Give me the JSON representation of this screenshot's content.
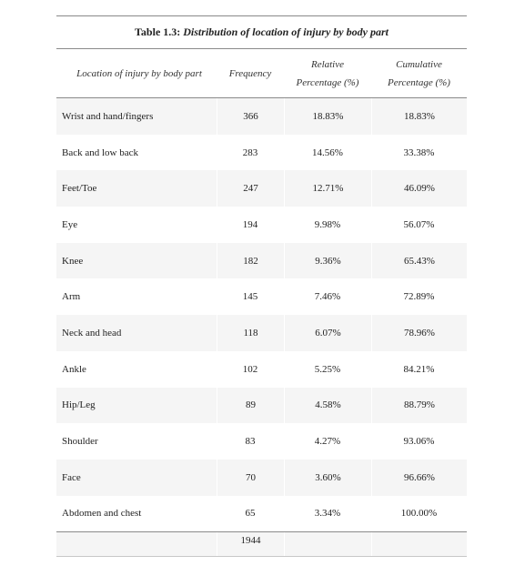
{
  "table": {
    "caption_label": "Table 1.3:",
    "caption_title": "Distribution of location of injury by body part",
    "headers": {
      "location": "Location of injury by body part",
      "frequency": "Frequency",
      "relative_line1": "Relative",
      "relative_line2": "Percentage (%)",
      "cumulative_line1": "Cumulative",
      "cumulative_line2": "Percentage (%)"
    },
    "rows": [
      {
        "location": "Wrist and hand/fingers",
        "frequency": "366",
        "relative": "18.83%",
        "cumulative": "18.83%"
      },
      {
        "location": "Back and low back",
        "frequency": "283",
        "relative": "14.56%",
        "cumulative": "33.38%"
      },
      {
        "location": "Feet/Toe",
        "frequency": "247",
        "relative": "12.71%",
        "cumulative": "46.09%"
      },
      {
        "location": "Eye",
        "frequency": "194",
        "relative": "9.98%",
        "cumulative": "56.07%"
      },
      {
        "location": "Knee",
        "frequency": "182",
        "relative": "9.36%",
        "cumulative": "65.43%"
      },
      {
        "location": "Arm",
        "frequency": "145",
        "relative": "7.46%",
        "cumulative": "72.89%"
      },
      {
        "location": "Neck and head",
        "frequency": "118",
        "relative": "6.07%",
        "cumulative": "78.96%"
      },
      {
        "location": "Ankle",
        "frequency": "102",
        "relative": "5.25%",
        "cumulative": "84.21%"
      },
      {
        "location": "Hip/Leg",
        "frequency": "89",
        "relative": "4.58%",
        "cumulative": "88.79%"
      },
      {
        "location": "Shoulder",
        "frequency": "83",
        "relative": "4.27%",
        "cumulative": "93.06%"
      },
      {
        "location": "Face",
        "frequency": "70",
        "relative": "3.60%",
        "cumulative": "96.66%"
      },
      {
        "location": "Abdomen and chest",
        "frequency": "65",
        "relative": "3.34%",
        "cumulative": "100.00%"
      }
    ],
    "total": {
      "frequency": "1944"
    }
  }
}
